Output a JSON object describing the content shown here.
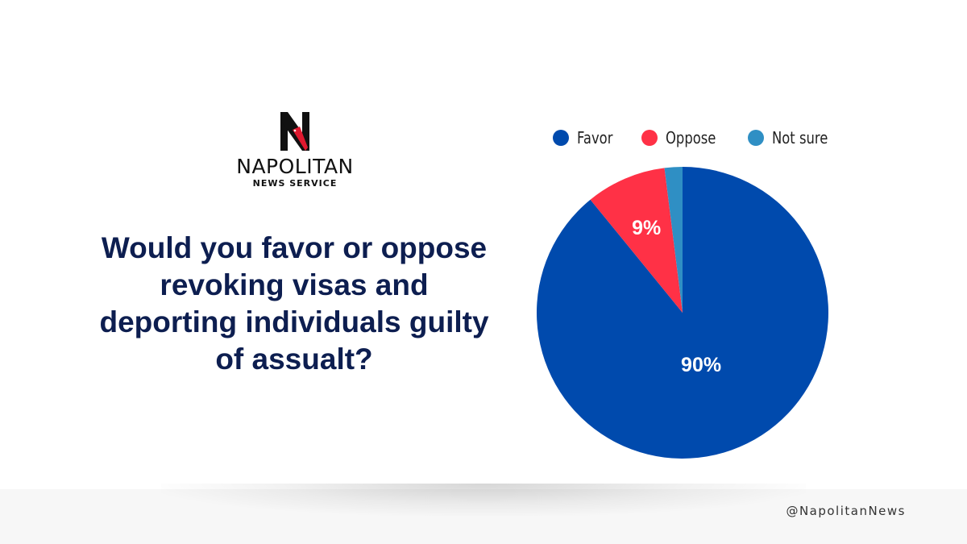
{
  "brand": {
    "name": "NAPOLITAN",
    "subtitle": "NEWS SERVICE",
    "handle": "@NapolitanNews"
  },
  "question": "Would you favor or oppose revoking visas and deporting individuals guilty of assualt?",
  "chart_data": {
    "type": "pie",
    "title": "Would you favor or oppose revoking visas and deporting individuals guilty of assualt?",
    "legend_position": "top",
    "start_angle_deg": 0,
    "direction": "clockwise",
    "slices": [
      {
        "label": "Favor",
        "value": 90,
        "display": "90%",
        "color": "#004aad"
      },
      {
        "label": "Oppose",
        "value": 9,
        "display": "9%",
        "color": "#ff3146"
      },
      {
        "label": "Not sure",
        "value": 2,
        "display": "",
        "color": "#2f8fc4"
      }
    ]
  },
  "colors": {
    "title_text": "#0d1e50",
    "logo_red": "#e0192f"
  }
}
